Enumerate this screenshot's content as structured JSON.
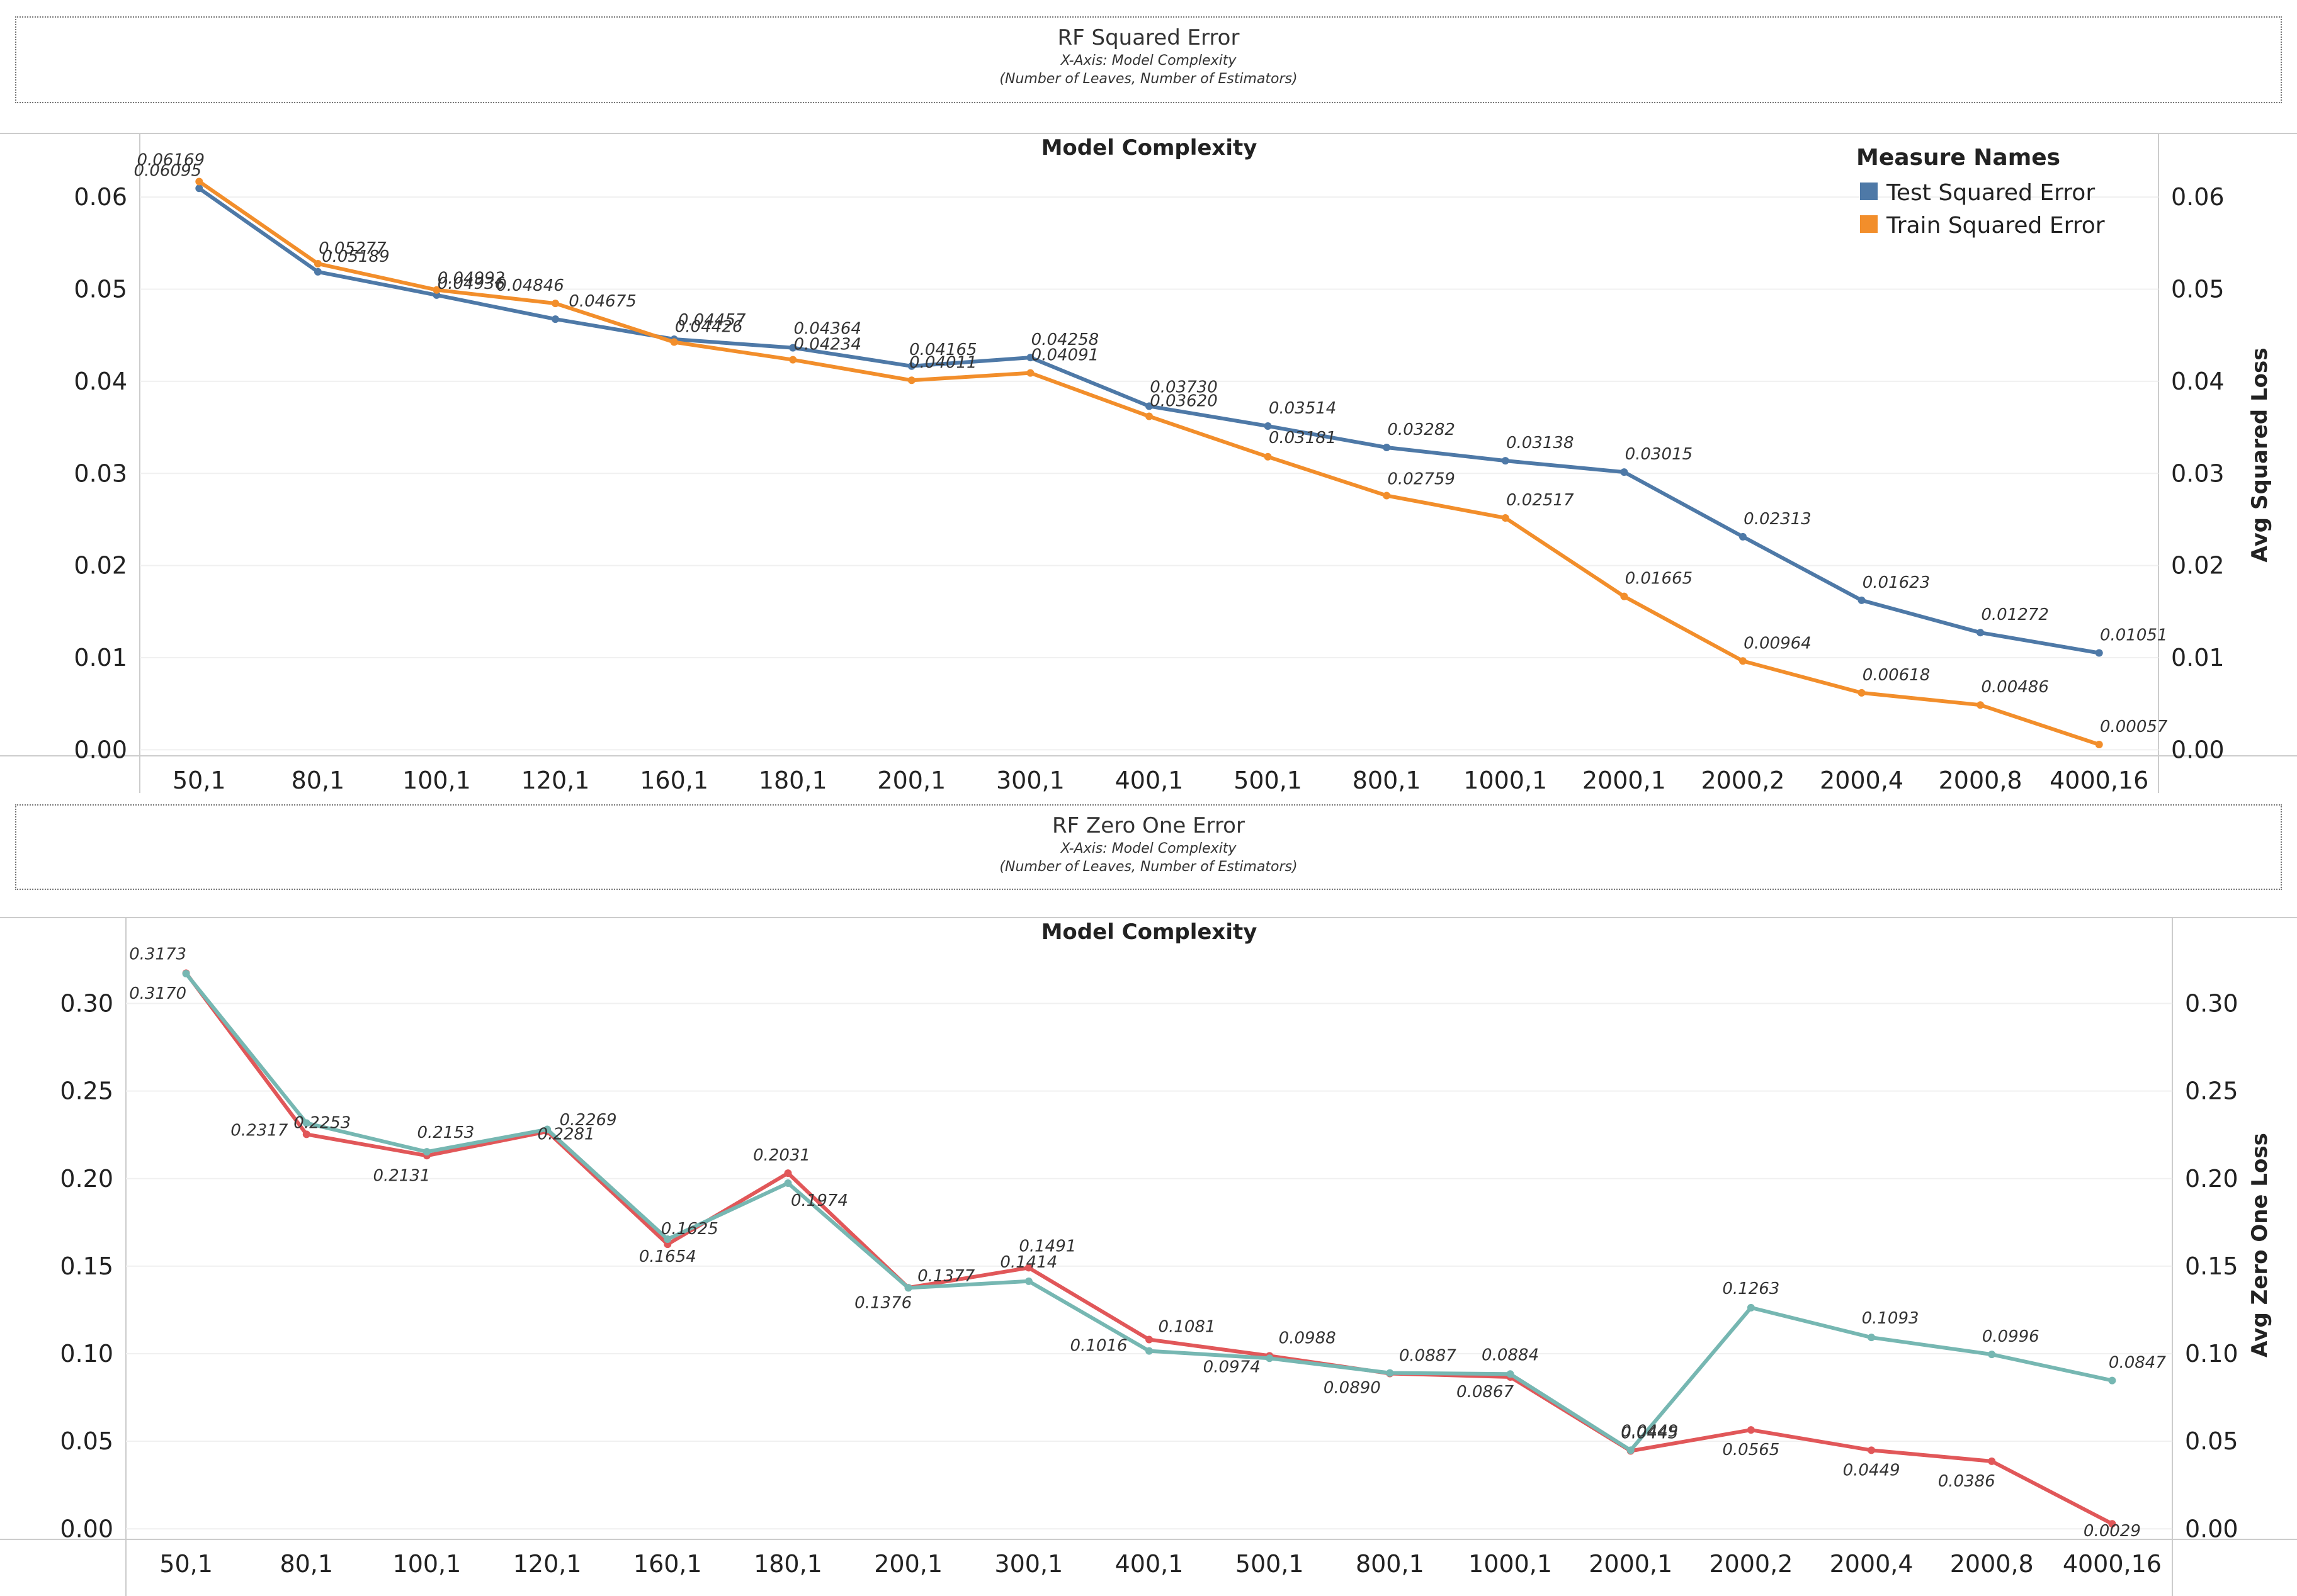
{
  "charts": [
    {
      "title": "RF Squared Error",
      "subtitle1": "X-Axis: Model Complexity",
      "subtitle2": "(Number of Leaves, Number of  Estimators)"
    },
    {
      "title": "RF Zero One Error",
      "subtitle1": "X-Axis: Model Complexity",
      "subtitle2": "(Number of Leaves, Number of  Estimators)"
    }
  ],
  "legend": {
    "title": "Measure Names",
    "items": [
      {
        "label": "Test Squared Error",
        "color": "#4E79A7"
      },
      {
        "label": "Train Squared Error",
        "color": "#F28E2B"
      }
    ]
  },
  "chart_data": [
    {
      "type": "line",
      "title": "RF Squared Error",
      "xlabel": "Model Complexity",
      "ylabel": "Avg Squared Loss",
      "categories": [
        "50,1",
        "80,1",
        "100,1",
        "120,1",
        "160,1",
        "180,1",
        "200,1",
        "300,1",
        "400,1",
        "500,1",
        "800,1",
        "1000,1",
        "2000,1",
        "2000,2",
        "2000,4",
        "2000,8",
        "4000,16"
      ],
      "ylim": [
        -0.001,
        0.065
      ],
      "yticks": [
        "0.00",
        "0.01",
        "0.02",
        "0.03",
        "0.04",
        "0.05",
        "0.06"
      ],
      "series": [
        {
          "name": "Test Squared Error",
          "color": "#4E79A7",
          "values": [
            0.06095,
            0.05189,
            0.04936,
            0.04675,
            0.04457,
            0.04364,
            0.04165,
            0.04258,
            0.0373,
            0.03514,
            0.03282,
            0.03138,
            0.03015,
            0.02313,
            0.01623,
            0.01272,
            0.01051
          ],
          "labels": [
            "0.06095",
            "0.05189",
            "0.04936",
            "0.04675",
            "0.04457",
            "0.04364",
            "0.04165",
            "0.04258",
            "0.03730",
            "0.03514",
            "0.03282",
            "0.03138",
            "0.03015",
            "0.02313",
            "0.01623",
            "0.01272",
            "0.01051"
          ]
        },
        {
          "name": "Train Squared Error",
          "color": "#F28E2B",
          "values": [
            0.06169,
            0.05277,
            0.04992,
            0.04846,
            0.04426,
            0.04234,
            0.04011,
            0.04091,
            0.0362,
            0.03181,
            0.02759,
            0.02517,
            0.01665,
            0.00964,
            0.00618,
            0.00486,
            0.00057
          ],
          "labels": [
            "0.06169",
            "0.05277",
            "0.04992",
            "0.04846",
            "0.04426",
            "0.04234",
            "0.04011",
            "0.04091",
            "0.03620",
            "0.03181",
            "0.02759",
            "0.02517",
            "0.01665",
            "0.00964",
            "0.00618",
            "0.00486",
            "0.00057"
          ]
        }
      ]
    },
    {
      "type": "line",
      "title": "RF Zero One Error",
      "xlabel": "Model Complexity",
      "ylabel": "Avg Zero One Loss",
      "categories": [
        "50,1",
        "80,1",
        "100,1",
        "120,1",
        "160,1",
        "180,1",
        "200,1",
        "300,1",
        "400,1",
        "500,1",
        "800,1",
        "1000,1",
        "2000,1",
        "2000,2",
        "2000,4",
        "2000,8",
        "4000,16"
      ],
      "ylim": [
        -0.006,
        0.33
      ],
      "yticks": [
        "0.00",
        "0.05",
        "0.10",
        "0.15",
        "0.20",
        "0.25",
        "0.30"
      ],
      "series": [
        {
          "color": "#E15759",
          "values": [
            0.3173,
            0.2253,
            0.2131,
            0.2269,
            0.1625,
            0.2031,
            0.1377,
            0.1491,
            0.1081,
            0.0988,
            0.0887,
            0.0867,
            0.0445,
            0.0565,
            0.0449,
            0.0386,
            0.0029
          ],
          "labels": [
            "0.3173",
            "0.2253",
            "0.2131",
            "0.2269",
            "0.1625",
            "0.2031",
            "0.1377",
            "0.1491",
            "0.1081",
            "0.0988",
            "0.0887",
            "0.0867",
            "0.0445",
            "0.0565",
            "0.0449",
            "0.0386",
            "0.0029"
          ]
        },
        {
          "color": "#76B7B2",
          "values": [
            0.317,
            0.2317,
            0.2153,
            0.2281,
            0.1654,
            0.1974,
            0.1376,
            0.1414,
            0.1016,
            0.0974,
            0.089,
            0.0884,
            0.0449,
            0.1263,
            0.1093,
            0.0996,
            0.0847
          ],
          "labels": [
            "0.3170",
            "0.2317",
            "0.2153",
            "0.2281",
            "0.1654",
            "0.1974",
            "0.1376",
            "0.1414",
            "0.1016",
            "0.0974",
            "0.0890",
            "0.0884",
            "0.0449",
            "0.1263",
            "0.1093",
            "0.0996",
            "0.0847"
          ]
        }
      ]
    }
  ]
}
